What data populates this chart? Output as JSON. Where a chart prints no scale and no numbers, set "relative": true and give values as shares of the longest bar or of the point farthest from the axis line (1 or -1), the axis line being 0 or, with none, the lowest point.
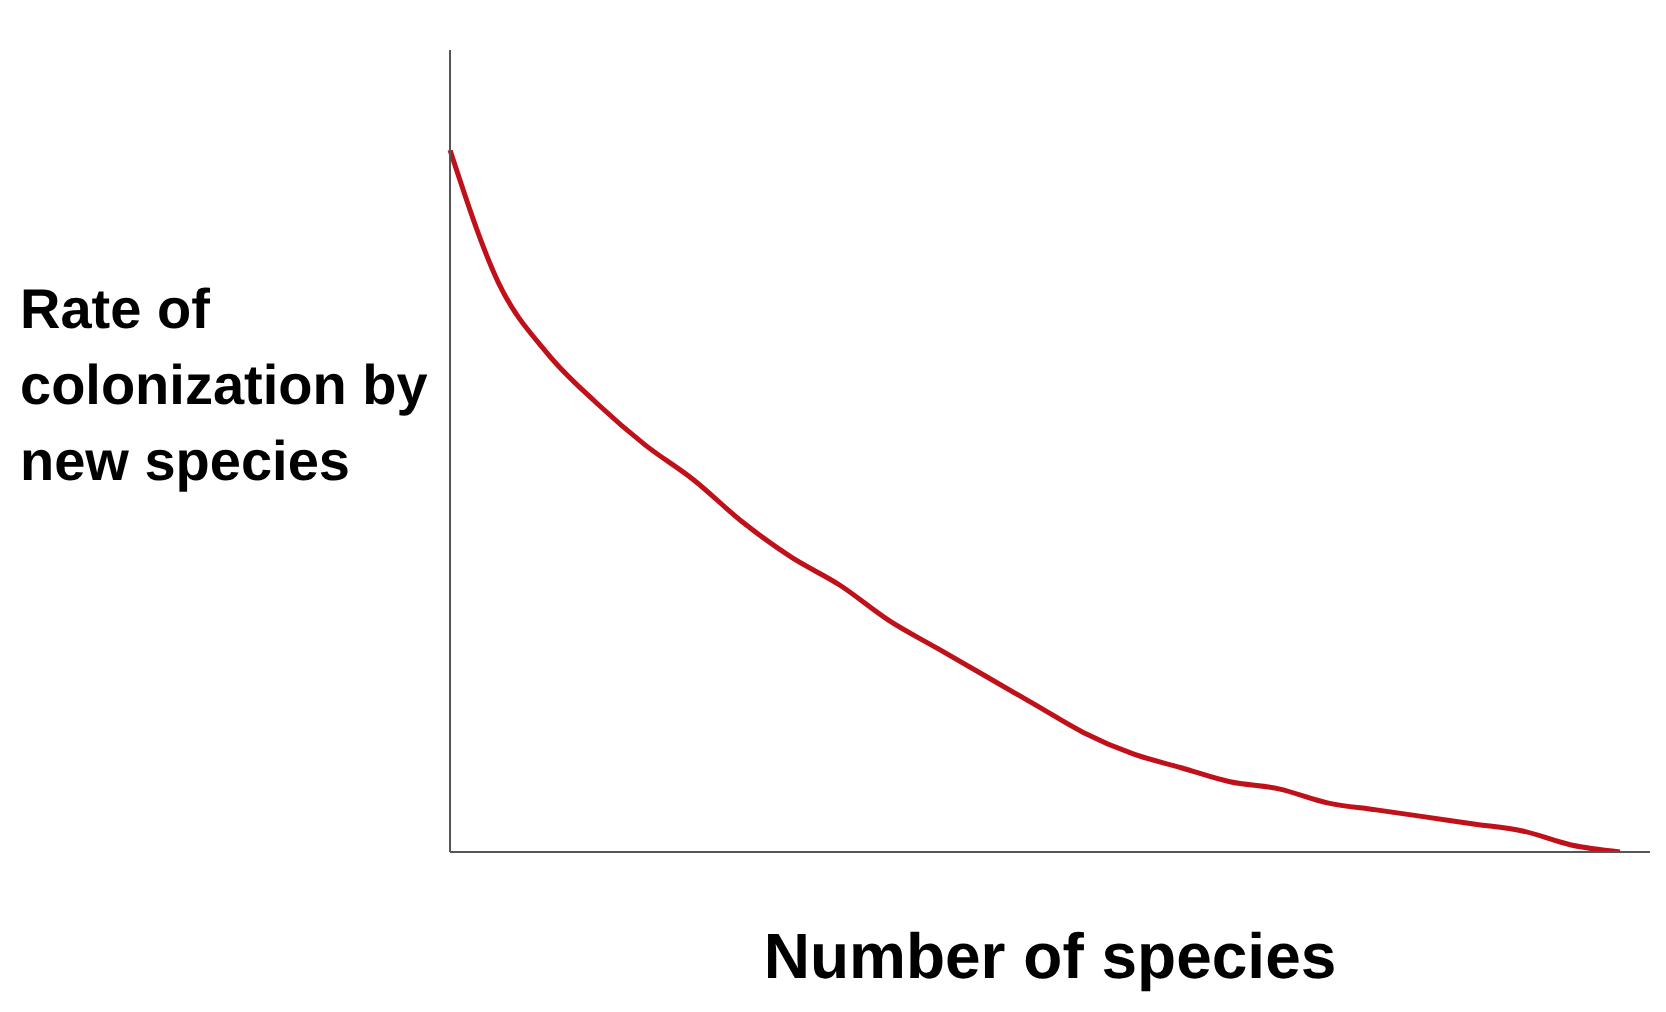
{
  "chart_data": {
    "type": "line",
    "relative": true,
    "xlabel": "Number of species",
    "ylabel": "Rate of colonization by new species",
    "categories": [
      null,
      null,
      null,
      null,
      null,
      null,
      null,
      null,
      null,
      null,
      null,
      null,
      null,
      null,
      null,
      null,
      null,
      null,
      null,
      null,
      null,
      null,
      null,
      null,
      null
    ],
    "series": [
      {
        "color": "#c0101a",
        "values": [
          1,
          0.81,
          0.71,
          0.64,
          0.58,
          0.53,
          0.47,
          0.42,
          0.38,
          0.33,
          0.29,
          0.25,
          0.21,
          0.17,
          0.14,
          0.12,
          0.1,
          0.09,
          0.07,
          0.06,
          0.05,
          0.04,
          0.03,
          0.01,
          0
        ]
      }
    ],
    "grid": false,
    "legend": false,
    "marker": "none",
    "line_style": "solid"
  }
}
